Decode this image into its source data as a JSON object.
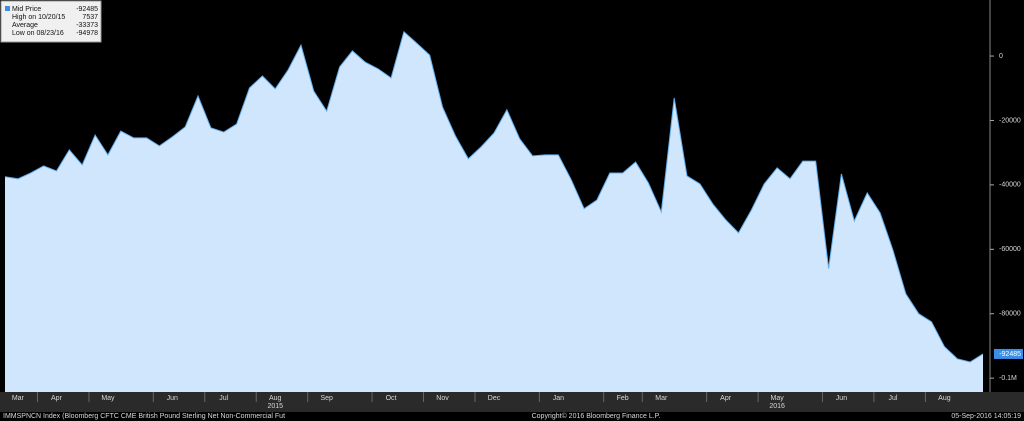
{
  "chart_data": {
    "type": "area",
    "series": [
      {
        "name": "Mid Price",
        "color": "#62aef0",
        "fill": "#cfe6fc",
        "values": [
          -37500,
          -38100,
          -36300,
          -34100,
          -35700,
          -29100,
          -33800,
          -24500,
          -30700,
          -23300,
          -25400,
          -25400,
          -27900,
          -25100,
          -22000,
          -12400,
          -22300,
          -23600,
          -21100,
          -9900,
          -6200,
          -10200,
          -4300,
          3400,
          -10900,
          -17100,
          -3400,
          1600,
          -1900,
          -4000,
          -6800,
          7537,
          4000,
          300,
          -15800,
          -24800,
          -31900,
          -28200,
          -23900,
          -16700,
          -25700,
          -31000,
          -30700,
          -30700,
          -38400,
          -47400,
          -44700,
          -36300,
          -36300,
          -32900,
          -39400,
          -48400,
          -13000,
          -37200,
          -39700,
          -45900,
          -50800,
          -54900,
          -47800,
          -39700,
          -34700,
          -38100,
          -32600,
          -32600,
          -66000,
          -36600,
          -51200,
          -42500,
          -48700,
          -60200,
          -73800,
          -80000,
          -82500,
          -90200,
          -94000,
          -94978,
          -92485
        ]
      }
    ],
    "categories": [
      null,
      "Mar",
      null,
      null,
      "Apr",
      null,
      null,
      null,
      "May",
      null,
      null,
      null,
      null,
      "Jun",
      null,
      null,
      null,
      "Jul",
      null,
      null,
      null,
      "Aug",
      null,
      null,
      null,
      "Sep",
      null,
      null,
      null,
      null,
      "Oct",
      null,
      null,
      null,
      "Nov",
      null,
      null,
      null,
      "Dec",
      null,
      null,
      null,
      null,
      "Jan",
      null,
      null,
      null,
      null,
      "Feb",
      null,
      null,
      "Mar",
      null,
      null,
      null,
      null,
      "Apr",
      null,
      null,
      null,
      "May",
      null,
      null,
      null,
      null,
      "Jun",
      null,
      null,
      null,
      "Jul",
      null,
      null,
      null,
      "Aug",
      null,
      null,
      null
    ],
    "year_labels": [
      null,
      null,
      null,
      null,
      null,
      null,
      null,
      null,
      null,
      null,
      null,
      null,
      null,
      null,
      null,
      null,
      null,
      null,
      null,
      null,
      null,
      "2015",
      null,
      null,
      null,
      null,
      null,
      null,
      null,
      null,
      null,
      null,
      null,
      null,
      null,
      null,
      null,
      null,
      null,
      null,
      null,
      null,
      null,
      null,
      null,
      null,
      null,
      null,
      null,
      null,
      null,
      null,
      null,
      null,
      null,
      null,
      null,
      null,
      null,
      null,
      "2016",
      null,
      null,
      null,
      null,
      null,
      null,
      null,
      null,
      null,
      null,
      null,
      null,
      null,
      null,
      null,
      null
    ],
    "ylim": [
      -104300,
      17400
    ],
    "yticks": [
      0,
      -20000,
      -40000,
      -60000,
      -80000,
      {
        "value": -100000,
        "label": "-0.1M"
      }
    ],
    "legend": [
      {
        "label": "High on 10/20/15",
        "value": 7537
      },
      {
        "label": "Average",
        "value": -33373
      },
      {
        "label": "Low on 08/23/16",
        "value": -94978
      }
    ],
    "footer": {
      "left": "IMMSPNCN Index (Bloomberg CFTC CME British Pound Sterling Net Non-Commercial Fut",
      "center": "Copyright© 2016 Bloomberg Finance L.P.",
      "right": "05-Sep-2016 14:05:19"
    }
  }
}
